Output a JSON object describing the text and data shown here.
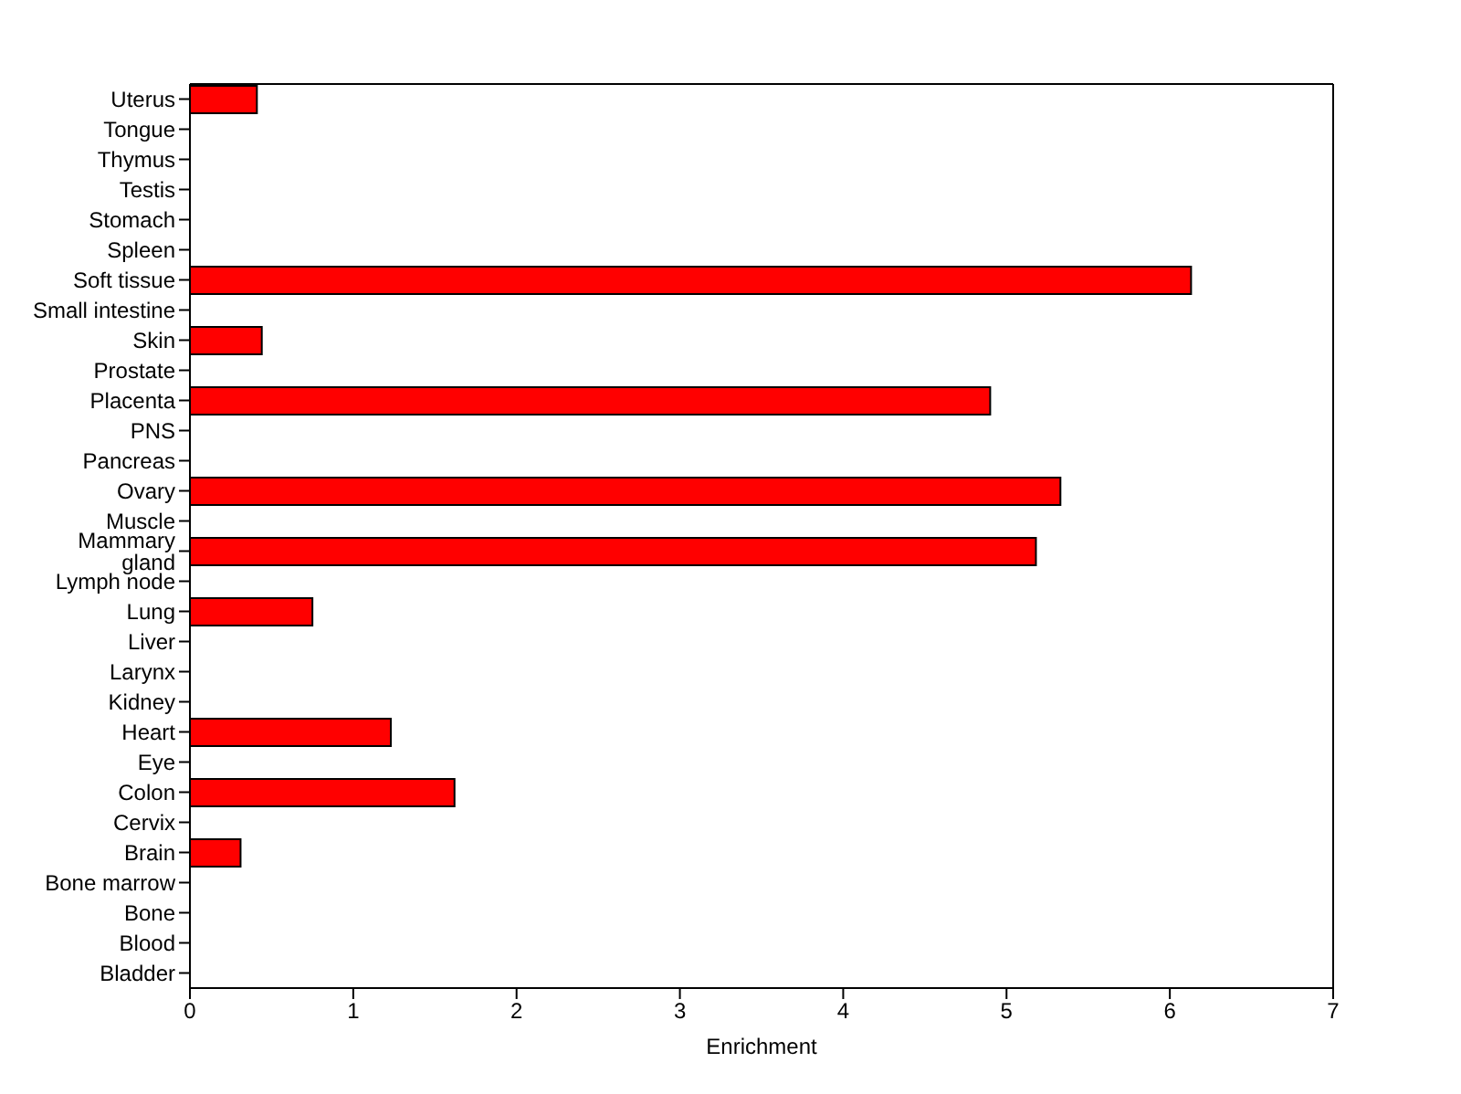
{
  "chart_data": {
    "type": "bar",
    "orientation": "horizontal",
    "xlabel": "Enrichment",
    "categories": [
      "Uterus",
      "Tongue",
      "Thymus",
      "Testis",
      "Stomach",
      "Spleen",
      "Soft tissue",
      "Small intestine",
      "Skin",
      "Prostate",
      "Placenta",
      "PNS",
      "Pancreas",
      "Ovary",
      "Muscle",
      "Mammary gland",
      "Lymph node",
      "Lung",
      "Liver",
      "Larynx",
      "Kidney",
      "Heart",
      "Eye",
      "Colon",
      "Cervix",
      "Brain",
      "Bone marrow",
      "Bone",
      "Blood",
      "Bladder"
    ],
    "values": [
      0.41,
      0,
      0,
      0,
      0,
      0,
      6.13,
      0,
      0.44,
      0,
      4.9,
      0,
      0,
      5.33,
      0,
      5.18,
      0,
      0.75,
      0,
      0,
      0,
      1.23,
      0,
      1.62,
      0,
      0.31,
      0,
      0,
      0,
      0
    ],
    "color": "#ff0000",
    "xlim": [
      0,
      7
    ],
    "xticks": [
      0,
      1,
      2,
      3,
      4,
      5,
      6,
      7
    ],
    "grid": false,
    "legend": false
  }
}
